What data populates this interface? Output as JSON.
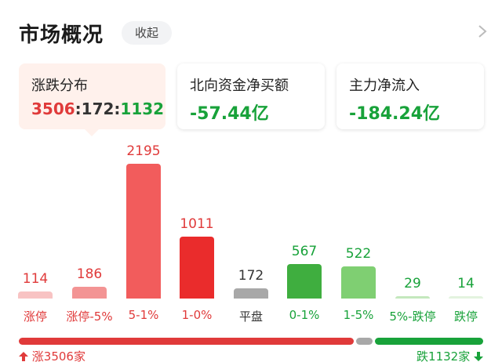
{
  "header": {
    "title": "市场概况",
    "collapse_label": "收起"
  },
  "cards": [
    {
      "label": "涨跌分布",
      "up": "3506",
      "flat": "172",
      "down": "1132",
      "sep": ":"
    },
    {
      "label": "北向资金净买额",
      "value": "-57.44亿"
    },
    {
      "label": "主力净流入",
      "value": "-184.24亿"
    }
  ],
  "chart_data": {
    "type": "bar",
    "categories": [
      "涨停",
      "涨停-5%",
      "5-1%",
      "1-0%",
      "平盘",
      "0-1%",
      "1-5%",
      "5%-跌停",
      "跌停"
    ],
    "values": [
      114,
      186,
      2195,
      1011,
      172,
      567,
      522,
      29,
      14
    ],
    "value_labels": [
      "114",
      "186",
      "2195",
      "1011",
      "172",
      "567",
      "522",
      "29",
      "14"
    ],
    "colors": [
      "#f8c3c3",
      "#f39494",
      "#f25c5c",
      "#ea2c2c",
      "#a8a8a8",
      "#3fae3f",
      "#7fcf72",
      "#c4e8bd",
      "#e3f3df"
    ],
    "label_colors": [
      "#e03a3a",
      "#e03a3a",
      "#e03a3a",
      "#e03a3a",
      "#333333",
      "#18a23a",
      "#18a23a",
      "#18a23a",
      "#18a23a"
    ],
    "ylim": [
      0,
      2195
    ]
  },
  "ratio": {
    "up": 3506,
    "flat": 172,
    "down": 1132
  },
  "footer": {
    "up_text": "涨3506家",
    "down_text": "跌1132家"
  },
  "colors": {
    "up": "#e03a3a",
    "down": "#18a23a",
    "flat": "#a8a8a8"
  }
}
